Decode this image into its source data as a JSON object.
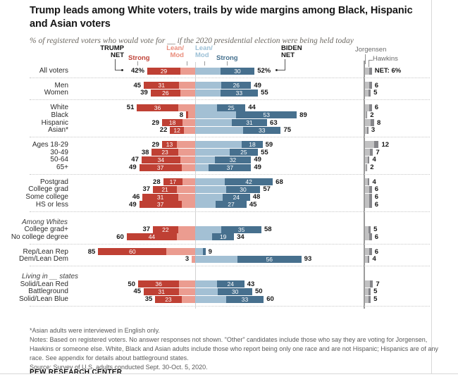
{
  "header": {
    "title": "Trump leads among White voters, trails by wide margins among Black, Hispanic\nand Asian voters",
    "subtitle": "% of registered voters who would vote for __ if the 2020 presidential election were being held today"
  },
  "legend": {
    "trump_net": "TRUMP\nNET",
    "strong_trump": "Strong",
    "lean_trump": "Lean/\nMod",
    "lean_biden": "Lean/\nMod",
    "strong_biden": "Strong",
    "biden_net": "BIDEN\nNET",
    "jorgensen": "Jorgensen",
    "hawkins": "Hawkins"
  },
  "colors": {
    "strong_trump": "#bf4034",
    "lean_trump": "#eb9c90",
    "lean_biden": "#a3c0d4",
    "strong_biden": "#47708e",
    "jorgensen": "#c1c1c2",
    "hawkins": "#86868a",
    "axis_line": "#d2d2d2",
    "third_axis_line": "#9b9b9b"
  },
  "chart_data": {
    "type": "bar",
    "orientation": "diverging-horizontal",
    "unit": "% of registered voters",
    "series_order": [
      "strong_trump",
      "lean_trump",
      "lean_biden",
      "strong_biden",
      "jorgensen_hawkins_net"
    ],
    "groups": [
      {
        "rows": [
          {
            "label": "All voters",
            "trump_net": 42,
            "trump_net_label": "42%",
            "strong_trump": 29,
            "lean_trump": 13,
            "lean_biden": 22,
            "strong_biden": 30,
            "biden_net": 52,
            "biden_net_label": "52%",
            "strong_trump_label": "29",
            "strong_biden_label": "30",
            "third_net": 6,
            "third_net_label": "NET: 6%"
          }
        ]
      },
      {
        "rows": [
          {
            "label": "Men",
            "trump_net": 45,
            "trump_net_label": "45",
            "strong_trump": 31,
            "lean_trump": 14,
            "lean_biden": 23,
            "strong_biden": 26,
            "biden_net": 49,
            "biden_net_label": "49",
            "strong_trump_label": "31",
            "strong_biden_label": "26",
            "third_net": 6,
            "third_net_label": "6"
          },
          {
            "label": "Women",
            "trump_net": 39,
            "trump_net_label": "39",
            "strong_trump": 26,
            "lean_trump": 13,
            "lean_biden": 22,
            "strong_biden": 33,
            "biden_net": 55,
            "biden_net_label": "55",
            "strong_trump_label": "26",
            "strong_biden_label": "33",
            "third_net": 5,
            "third_net_label": "5"
          }
        ]
      },
      {
        "rows": [
          {
            "label": "White",
            "trump_net": 51,
            "trump_net_label": "51",
            "strong_trump": 36,
            "lean_trump": 15,
            "lean_biden": 19,
            "strong_biden": 25,
            "biden_net": 44,
            "biden_net_label": "44",
            "strong_trump_label": "36",
            "strong_biden_label": "25",
            "third_net": 6,
            "third_net_label": "6"
          },
          {
            "label": "Black",
            "trump_net": 8,
            "trump_net_label": "8",
            "strong_trump": 2,
            "lean_trump": 6,
            "lean_biden": 36,
            "strong_biden": 53,
            "biden_net": 89,
            "biden_net_label": "89",
            "strong_trump_label": null,
            "strong_biden_label": "53",
            "third_net": 2,
            "third_net_label": "2"
          },
          {
            "label": "Hispanic",
            "trump_net": 29,
            "trump_net_label": "29",
            "strong_trump": 18,
            "lean_trump": 11,
            "lean_biden": 32,
            "strong_biden": 31,
            "biden_net": 63,
            "biden_net_label": "63",
            "strong_trump_label": "18",
            "strong_biden_label": "31",
            "third_net": 8,
            "third_net_label": "8"
          },
          {
            "label": "Asian*",
            "trump_net": 22,
            "trump_net_label": "22",
            "strong_trump": 12,
            "lean_trump": 10,
            "lean_biden": 42,
            "strong_biden": 33,
            "biden_net": 75,
            "biden_net_label": "75",
            "strong_trump_label": "12",
            "strong_biden_label": "33",
            "third_net": 3,
            "third_net_label": "3"
          }
        ]
      },
      {
        "rows": [
          {
            "label": "Ages 18-29",
            "trump_net": 29,
            "trump_net_label": "29",
            "strong_trump": 13,
            "lean_trump": 16,
            "lean_biden": 41,
            "strong_biden": 18,
            "biden_net": 59,
            "biden_net_label": "59",
            "strong_trump_label": "13",
            "strong_biden_label": "18",
            "third_net": 12,
            "third_net_label": "12"
          },
          {
            "label": "30-49",
            "trump_net": 38,
            "trump_net_label": "38",
            "strong_trump": 23,
            "lean_trump": 15,
            "lean_biden": 30,
            "strong_biden": 25,
            "biden_net": 55,
            "biden_net_label": "55",
            "strong_trump_label": "23",
            "strong_biden_label": "25",
            "third_net": 7,
            "third_net_label": "7"
          },
          {
            "label": "50-64",
            "trump_net": 47,
            "trump_net_label": "47",
            "strong_trump": 34,
            "lean_trump": 13,
            "lean_biden": 17,
            "strong_biden": 32,
            "biden_net": 49,
            "biden_net_label": "49",
            "strong_trump_label": "34",
            "strong_biden_label": "32",
            "third_net": 4,
            "third_net_label": "4"
          },
          {
            "label": "65+",
            "trump_net": 49,
            "trump_net_label": "49",
            "strong_trump": 37,
            "lean_trump": 12,
            "lean_biden": 12,
            "strong_biden": 37,
            "biden_net": 49,
            "biden_net_label": "49",
            "strong_trump_label": "37",
            "strong_biden_label": "37",
            "third_net": 2,
            "third_net_label": "2"
          }
        ]
      },
      {
        "rows": [
          {
            "label": "Postgrad",
            "trump_net": 28,
            "trump_net_label": "28",
            "strong_trump": 17,
            "lean_trump": 11,
            "lean_biden": 26,
            "strong_biden": 42,
            "biden_net": 68,
            "biden_net_label": "68",
            "strong_trump_label": "17",
            "strong_biden_label": "42",
            "third_net": 4,
            "third_net_label": "4"
          },
          {
            "label": "College grad",
            "trump_net": 37,
            "trump_net_label": "37",
            "strong_trump": 21,
            "lean_trump": 16,
            "lean_biden": 27,
            "strong_biden": 30,
            "biden_net": 57,
            "biden_net_label": "57",
            "strong_trump_label": "21",
            "strong_biden_label": "30",
            "third_net": 6,
            "third_net_label": "6"
          },
          {
            "label": "Some college",
            "trump_net": 46,
            "trump_net_label": "46",
            "strong_trump": 31,
            "lean_trump": 15,
            "lean_biden": 24,
            "strong_biden": 24,
            "biden_net": 48,
            "biden_net_label": "48",
            "strong_trump_label": "31",
            "strong_biden_label": "24",
            "third_net": 6,
            "third_net_label": "6"
          },
          {
            "label": "HS or less",
            "trump_net": 49,
            "trump_net_label": "49",
            "strong_trump": 37,
            "lean_trump": 12,
            "lean_biden": 18,
            "strong_biden": 27,
            "biden_net": 45,
            "biden_net_label": "45",
            "strong_trump_label": "37",
            "strong_biden_label": "27",
            "third_net": 6,
            "third_net_label": "6"
          }
        ]
      },
      {
        "header": "Among Whites",
        "rows": [
          {
            "label": "College grad+",
            "trump_net": 37,
            "trump_net_label": "37",
            "strong_trump": 22,
            "lean_trump": 15,
            "lean_biden": 23,
            "strong_biden": 35,
            "biden_net": 58,
            "biden_net_label": "58",
            "strong_trump_label": "22",
            "strong_biden_label": "35",
            "third_net": 5,
            "third_net_label": "5"
          },
          {
            "label": "No college degree",
            "trump_net": 60,
            "trump_net_label": "60",
            "strong_trump": 44,
            "lean_trump": 16,
            "lean_biden": 15,
            "strong_biden": 19,
            "biden_net": 34,
            "biden_net_label": "34",
            "strong_trump_label": "44",
            "strong_biden_label": "19",
            "third_net": 6,
            "third_net_label": "6"
          }
        ]
      },
      {
        "rows": [
          {
            "label": "Rep/Lean Rep",
            "trump_net": 85,
            "trump_net_label": "85",
            "strong_trump": 60,
            "lean_trump": 25,
            "lean_biden": 7,
            "strong_biden": 2,
            "biden_net": 9,
            "biden_net_label": "9",
            "strong_trump_label": "60",
            "strong_biden_label": null,
            "third_net": 6,
            "third_net_label": "6"
          },
          {
            "label": "Dem/Lean Dem",
            "trump_net": 3,
            "trump_net_label": "3",
            "strong_trump": 0,
            "lean_trump": 3,
            "lean_biden": 37,
            "strong_biden": 56,
            "biden_net": 93,
            "biden_net_label": "93",
            "strong_trump_label": null,
            "strong_biden_label": "56",
            "third_net": 4,
            "third_net_label": "4"
          }
        ]
      },
      {
        "header": "Living in __ states",
        "rows": [
          {
            "label": "Solid/Lean Red",
            "trump_net": 50,
            "trump_net_label": "50",
            "strong_trump": 36,
            "lean_trump": 14,
            "lean_biden": 19,
            "strong_biden": 24,
            "biden_net": 43,
            "biden_net_label": "43",
            "strong_trump_label": "36",
            "strong_biden_label": "24",
            "third_net": 7,
            "third_net_label": "7"
          },
          {
            "label": "Battleground",
            "trump_net": 45,
            "trump_net_label": "45",
            "strong_trump": 31,
            "lean_trump": 14,
            "lean_biden": 20,
            "strong_biden": 30,
            "biden_net": 50,
            "biden_net_label": "50",
            "strong_trump_label": "31",
            "strong_biden_label": "30",
            "third_net": 5,
            "third_net_label": "5"
          },
          {
            "label": "Solid/Lean Blue",
            "trump_net": 35,
            "trump_net_label": "35",
            "strong_trump": 23,
            "lean_trump": 12,
            "lean_biden": 27,
            "strong_biden": 33,
            "biden_net": 60,
            "biden_net_label": "60",
            "strong_trump_label": "23",
            "strong_biden_label": "33",
            "third_net": 5,
            "third_net_label": "5"
          }
        ]
      }
    ]
  },
  "notes": {
    "asterisk": "*Asian adults were interviewed in English only.",
    "body": "Notes: Based on registered voters. No answer responses not shown. \"Other\" candidates include those who say they are voting for Jorgensen, Hawkins or someone else. White, Black and Asian adults include those who report being only one race and are not Hispanic; Hispanics are of any race. See appendix for details about battleground states.",
    "source": "Source: Survey of U.S. adults conducted Sept. 30-Oct. 5, 2020."
  },
  "footer": {
    "brand": "PEW RESEARCH CENTER"
  }
}
